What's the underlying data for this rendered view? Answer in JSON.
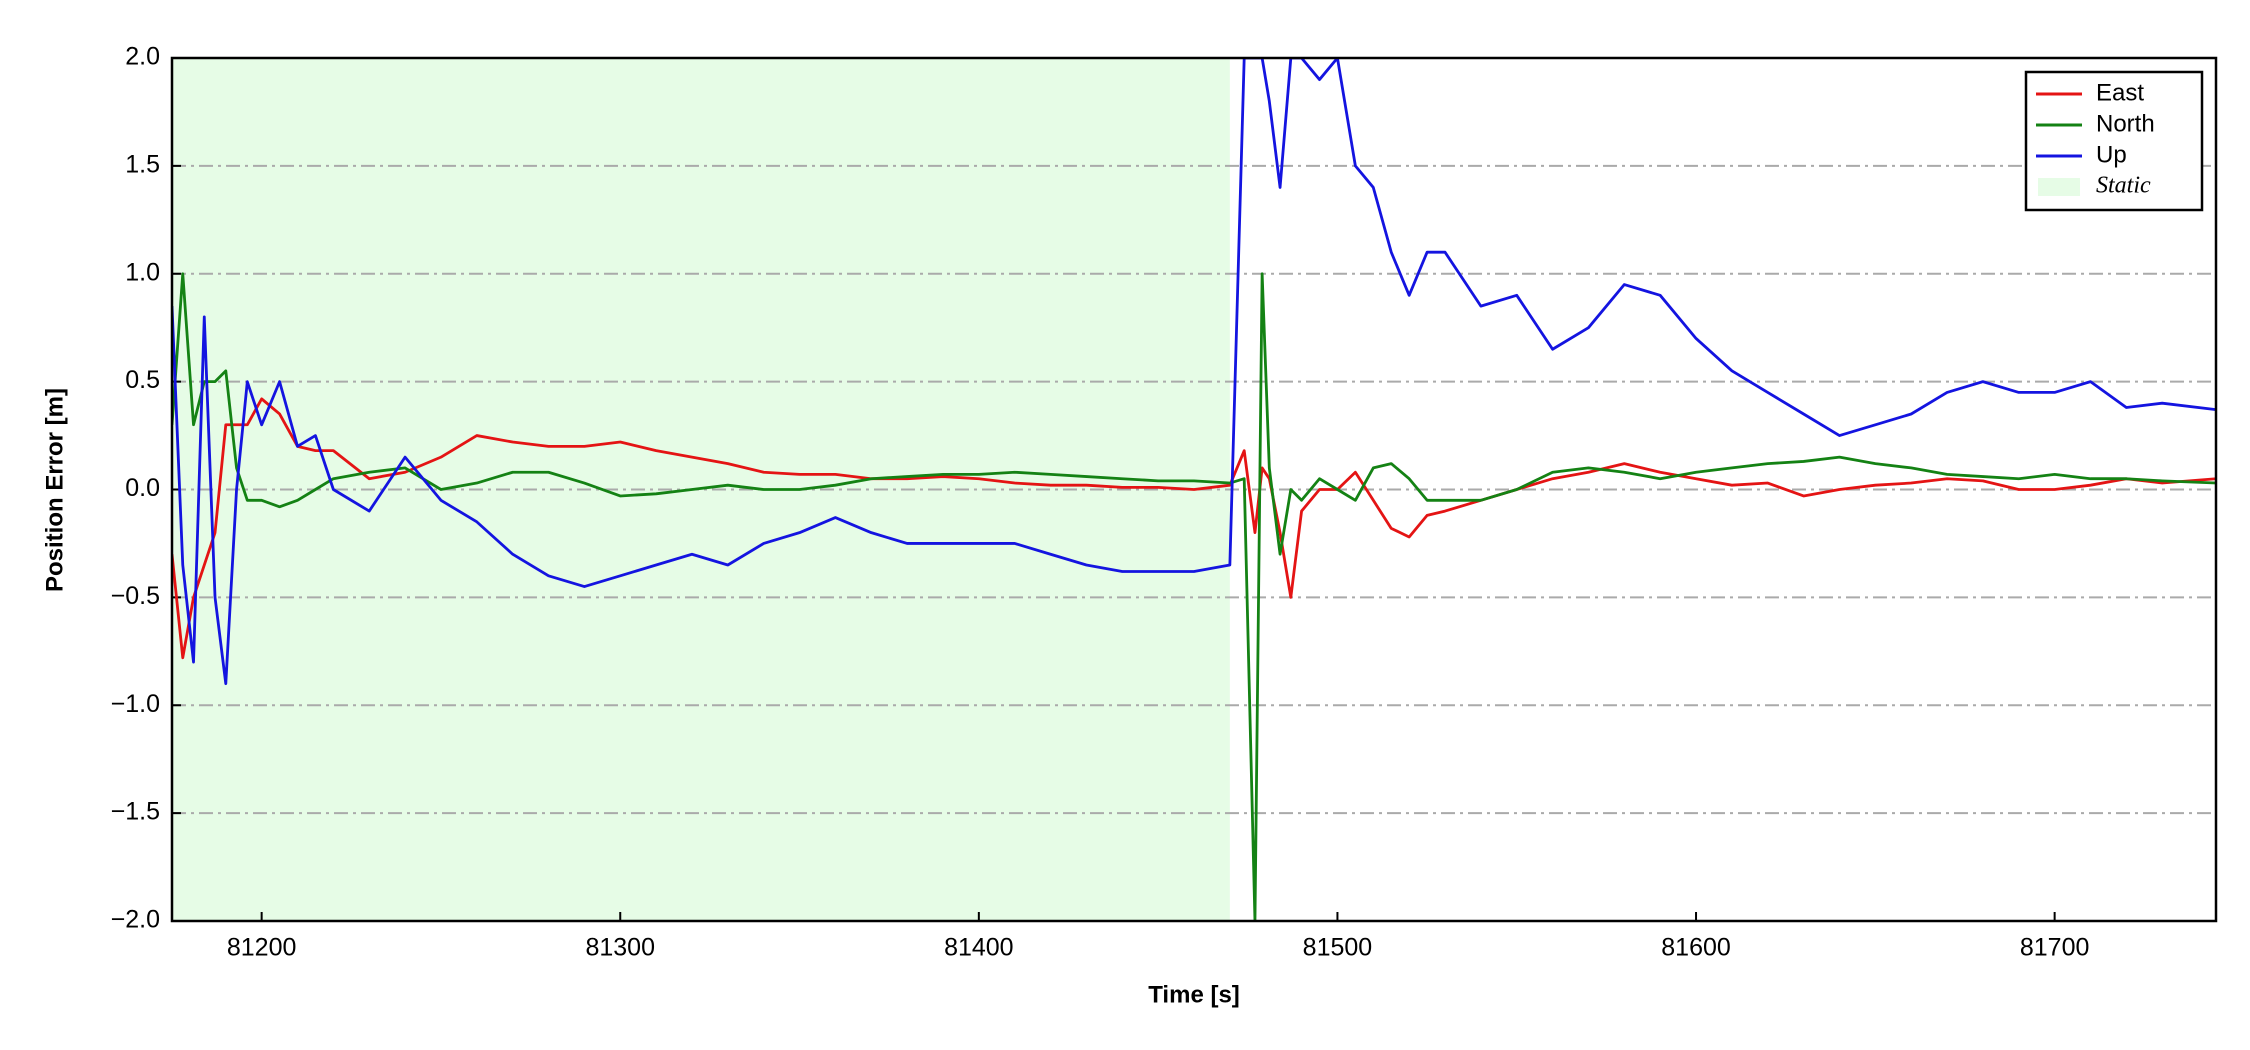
{
  "chart_data": {
    "type": "line",
    "x_label": "Time [s]",
    "y_label": "Position Error [m]",
    "x": [
      81175,
      81178,
      81181,
      81184,
      81187,
      81190,
      81193,
      81196,
      81200,
      81205,
      81210,
      81215,
      81220,
      81230,
      81240,
      81250,
      81260,
      81270,
      81280,
      81290,
      81300,
      81310,
      81320,
      81330,
      81340,
      81350,
      81360,
      81370,
      81380,
      81390,
      81400,
      81410,
      81420,
      81430,
      81440,
      81450,
      81460,
      81470,
      81474,
      81477,
      81479,
      81481,
      81484,
      81487,
      81490,
      81495,
      81500,
      81505,
      81510,
      81515,
      81520,
      81525,
      81530,
      81540,
      81550,
      81560,
      81570,
      81580,
      81590,
      81600,
      81610,
      81620,
      81630,
      81640,
      81650,
      81660,
      81670,
      81680,
      81690,
      81700,
      81710,
      81720,
      81730,
      81745
    ],
    "series": [
      {
        "name": "East",
        "color": "#e41414",
        "values": [
          -0.3,
          -0.78,
          -0.5,
          -0.35,
          -0.2,
          0.3,
          0.3,
          0.3,
          0.42,
          0.35,
          0.2,
          0.18,
          0.18,
          0.05,
          0.08,
          0.15,
          0.25,
          0.22,
          0.2,
          0.2,
          0.22,
          0.18,
          0.15,
          0.12,
          0.08,
          0.07,
          0.07,
          0.05,
          0.05,
          0.06,
          0.05,
          0.03,
          0.02,
          0.02,
          0.01,
          0.01,
          0.0,
          0.02,
          0.18,
          -0.2,
          0.1,
          0.05,
          -0.2,
          -0.5,
          -0.1,
          0.0,
          0.0,
          0.08,
          -0.05,
          -0.18,
          -0.22,
          -0.12,
          -0.1,
          -0.05,
          0.0,
          0.05,
          0.08,
          0.12,
          0.08,
          0.05,
          0.02,
          0.03,
          -0.03,
          0.0,
          0.02,
          0.03,
          0.05,
          0.04,
          0.0,
          0.0,
          0.02,
          0.05,
          0.03,
          0.05
        ]
      },
      {
        "name": "North",
        "color": "#148214",
        "values": [
          0.3,
          1.0,
          0.3,
          0.5,
          0.5,
          0.55,
          0.1,
          -0.05,
          -0.05,
          -0.08,
          -0.05,
          0.0,
          0.05,
          0.08,
          0.1,
          0.0,
          0.03,
          0.08,
          0.08,
          0.03,
          -0.03,
          -0.02,
          0.0,
          0.02,
          0.0,
          0.0,
          0.02,
          0.05,
          0.06,
          0.07,
          0.07,
          0.08,
          0.07,
          0.06,
          0.05,
          0.04,
          0.04,
          0.03,
          0.05,
          -2.0,
          1.0,
          0.1,
          -0.3,
          0.0,
          -0.05,
          0.05,
          0.0,
          -0.05,
          0.1,
          0.12,
          0.05,
          -0.05,
          -0.05,
          -0.05,
          0.0,
          0.08,
          0.1,
          0.08,
          0.05,
          0.08,
          0.1,
          0.12,
          0.13,
          0.15,
          0.12,
          0.1,
          0.07,
          0.06,
          0.05,
          0.07,
          0.05,
          0.05,
          0.04,
          0.03
        ]
      },
      {
        "name": "Up",
        "color": "#1414e0",
        "values": [
          0.85,
          -0.35,
          -0.8,
          0.8,
          -0.5,
          -0.9,
          0.0,
          0.5,
          0.3,
          0.5,
          0.2,
          0.25,
          0.0,
          -0.1,
          0.15,
          -0.05,
          -0.15,
          -0.3,
          -0.4,
          -0.45,
          -0.4,
          -0.35,
          -0.3,
          -0.35,
          -0.25,
          -0.2,
          -0.13,
          -0.2,
          -0.25,
          -0.25,
          -0.25,
          -0.25,
          -0.3,
          -0.35,
          -0.38,
          -0.38,
          -0.38,
          -0.35,
          2.0,
          2.0,
          2.0,
          1.8,
          1.4,
          2.0,
          2.0,
          1.9,
          2.0,
          1.5,
          1.4,
          1.1,
          0.9,
          1.1,
          1.1,
          0.85,
          0.9,
          0.65,
          0.75,
          0.95,
          0.9,
          0.7,
          0.55,
          0.45,
          0.35,
          0.25,
          0.3,
          0.35,
          0.45,
          0.5,
          0.45,
          0.45,
          0.5,
          0.38,
          0.4,
          0.37
        ]
      }
    ],
    "shaded_region": {
      "x": [
        81175,
        81470
      ],
      "label": "Static",
      "color": "#e6fce6"
    },
    "xlim": [
      81175,
      81745
    ],
    "ylim": [
      -2,
      2
    ],
    "xticks": [
      81200,
      81300,
      81400,
      81500,
      81600,
      81700
    ],
    "yticks": [
      {
        "value": -2,
        "label": "−2.0"
      },
      {
        "value": -1.5,
        "label": "−1.5"
      },
      {
        "value": -1,
        "label": "−1.0"
      },
      {
        "value": -0.5,
        "label": "−0.5"
      },
      {
        "value": 0,
        "label": "0.0"
      },
      0.5,
      {
        "value": 1,
        "label": "1.0"
      },
      1.5,
      {
        "value": 2,
        "label": "2.0"
      }
    ],
    "grid": true,
    "legend": "upper right"
  }
}
